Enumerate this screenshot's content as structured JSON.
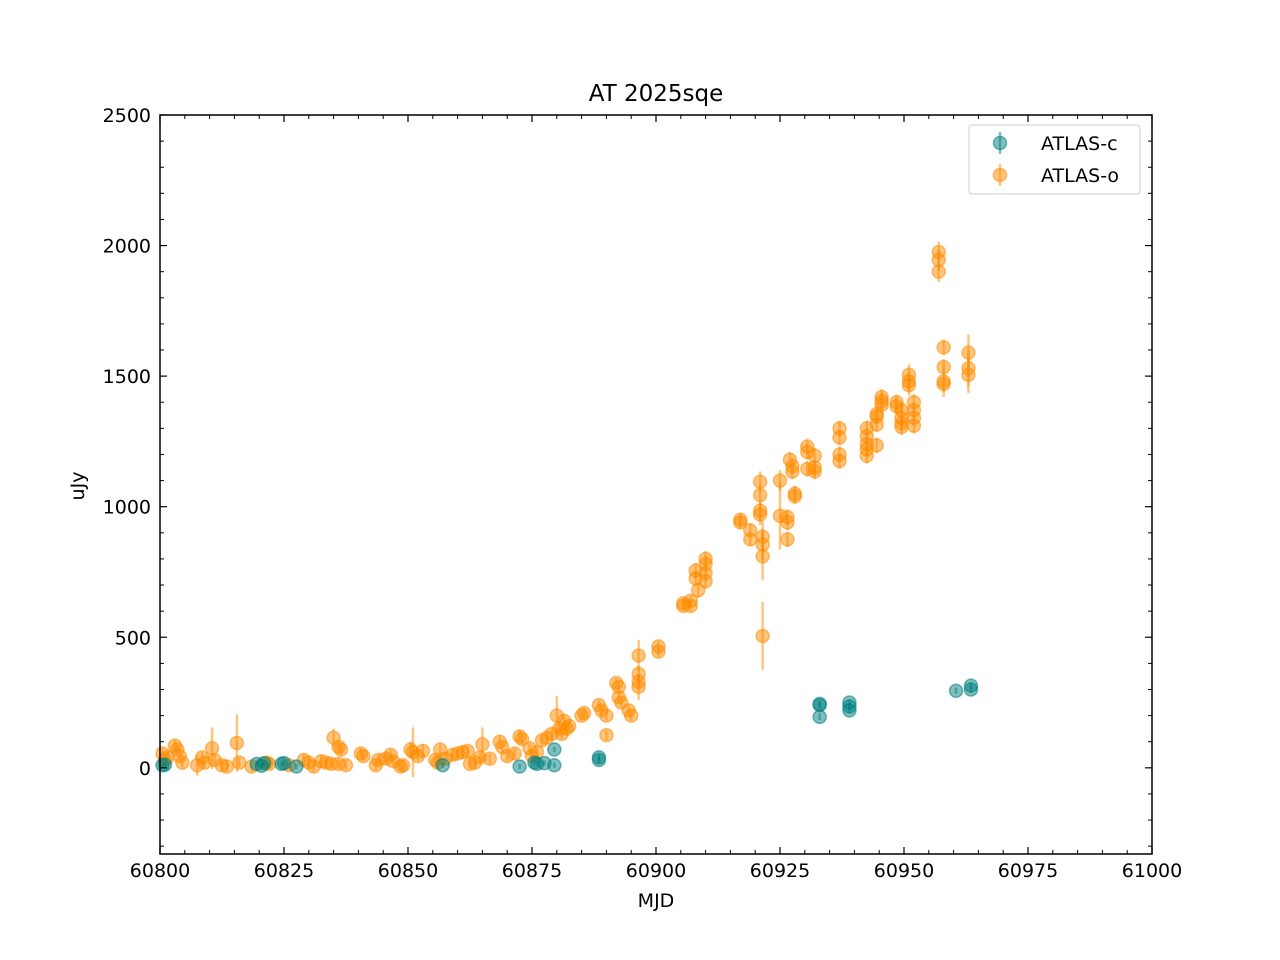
{
  "chart_data": {
    "type": "scatter",
    "title": "AT 2025sqe",
    "xlabel": "MJD",
    "ylabel": "uJy",
    "xlim": [
      60800,
      61000
    ],
    "ylim": [
      -330,
      2500
    ],
    "xticks": [
      "60800",
      "60825",
      "60850",
      "60875",
      "60900",
      "60925",
      "60950",
      "60975",
      "61000"
    ],
    "yticks": [
      "0",
      "500",
      "1000",
      "1500",
      "2000",
      "2500"
    ],
    "grid": false,
    "legend_position": "top-right",
    "series": [
      {
        "name": "ATLAS-c",
        "color": "#008080",
        "marker": "circle",
        "points": [
          [
            60800.5,
            10,
            10
          ],
          [
            60801.0,
            12,
            10
          ],
          [
            60819.5,
            15,
            10
          ],
          [
            60820.5,
            8,
            10
          ],
          [
            60821.0,
            18,
            10
          ],
          [
            60824.5,
            15,
            10
          ],
          [
            60825.0,
            18,
            10
          ],
          [
            60827.5,
            5,
            10
          ],
          [
            60857.0,
            10,
            10
          ],
          [
            60872.5,
            5,
            10
          ],
          [
            60875.5,
            20,
            10
          ],
          [
            60876.0,
            15,
            10
          ],
          [
            60877.5,
            18,
            10
          ],
          [
            60879.5,
            10,
            10
          ],
          [
            60879.5,
            70,
            10
          ],
          [
            60888.5,
            40,
            12
          ],
          [
            60888.5,
            30,
            12
          ],
          [
            60933.0,
            240,
            12
          ],
          [
            60933.0,
            245,
            12
          ],
          [
            60933.0,
            195,
            12
          ],
          [
            60939.0,
            250,
            12
          ],
          [
            60939.0,
            235,
            12
          ],
          [
            60939.0,
            220,
            12
          ],
          [
            60960.5,
            295,
            12
          ],
          [
            60963.5,
            300,
            12
          ],
          [
            60963.5,
            315,
            12
          ]
        ]
      },
      {
        "name": "ATLAS-o",
        "color": "#ff8c00",
        "marker": "circle",
        "points": [
          [
            60800.5,
            55,
            20
          ],
          [
            60801.0,
            30,
            20
          ],
          [
            60801.5,
            40,
            20
          ],
          [
            60803.0,
            85,
            25
          ],
          [
            60803.5,
            70,
            20
          ],
          [
            60804.0,
            45,
            20
          ],
          [
            60804.5,
            20,
            20
          ],
          [
            60807.5,
            10,
            40
          ],
          [
            60808.5,
            40,
            20
          ],
          [
            60809.0,
            20,
            20
          ],
          [
            60810.5,
            75,
            80
          ],
          [
            60811.0,
            30,
            20
          ],
          [
            60812.5,
            10,
            20
          ],
          [
            60813.5,
            5,
            20
          ],
          [
            60815.5,
            95,
            110
          ],
          [
            60816.0,
            20,
            20
          ],
          [
            60818.5,
            5,
            20
          ],
          [
            60821.5,
            20,
            20
          ],
          [
            60822.0,
            15,
            20
          ],
          [
            60826.0,
            10,
            20
          ],
          [
            60829.0,
            30,
            20
          ],
          [
            60830.0,
            20,
            20
          ],
          [
            60831.0,
            5,
            20
          ],
          [
            60832.5,
            25,
            25
          ],
          [
            60833.5,
            20,
            20
          ],
          [
            60834.5,
            15,
            20
          ],
          [
            60835.0,
            115,
            35
          ],
          [
            60836.0,
            80,
            25
          ],
          [
            60836.5,
            70,
            20
          ],
          [
            60836.0,
            15,
            20
          ],
          [
            60837.5,
            10,
            20
          ],
          [
            60840.5,
            55,
            20
          ],
          [
            60841.0,
            45,
            20
          ],
          [
            60843.5,
            10,
            20
          ],
          [
            60844.0,
            30,
            20
          ],
          [
            60845.5,
            35,
            20
          ],
          [
            60846.5,
            50,
            20
          ],
          [
            60847.0,
            25,
            20
          ],
          [
            60848.5,
            5,
            20
          ],
          [
            60849.0,
            10,
            20
          ],
          [
            60850.5,
            70,
            30
          ],
          [
            60851.0,
            60,
            95
          ],
          [
            60852.0,
            45,
            20
          ],
          [
            60853.0,
            65,
            25
          ],
          [
            60855.5,
            30,
            20
          ],
          [
            60856.0,
            20,
            20
          ],
          [
            60856.5,
            70,
            20
          ],
          [
            60857.5,
            35,
            20
          ],
          [
            60859.0,
            50,
            20
          ],
          [
            60860.0,
            55,
            20
          ],
          [
            60861.0,
            60,
            25
          ],
          [
            60862.0,
            65,
            20
          ],
          [
            60862.5,
            15,
            20
          ],
          [
            60863.5,
            20,
            20
          ],
          [
            60864.5,
            40,
            20
          ],
          [
            60865.0,
            90,
            65
          ],
          [
            60866.5,
            35,
            20
          ],
          [
            60868.5,
            100,
            25
          ],
          [
            60869.0,
            80,
            20
          ],
          [
            60870.0,
            45,
            20
          ],
          [
            60871.5,
            55,
            20
          ],
          [
            60872.5,
            120,
            25
          ],
          [
            60873.0,
            110,
            20
          ],
          [
            60874.5,
            75,
            20
          ],
          [
            60875.0,
            45,
            20
          ],
          [
            60876.0,
            60,
            20
          ],
          [
            60877.0,
            105,
            20
          ],
          [
            60878.0,
            115,
            20
          ],
          [
            60879.0,
            130,
            20
          ],
          [
            60880.0,
            200,
            75
          ],
          [
            60880.5,
            150,
            20
          ],
          [
            60881.0,
            130,
            20
          ],
          [
            60881.5,
            180,
            20
          ],
          [
            60882.0,
            150,
            20
          ],
          [
            60882.5,
            160,
            20
          ],
          [
            60885.0,
            200,
            20
          ],
          [
            60885.5,
            210,
            20
          ],
          [
            60888.5,
            240,
            20
          ],
          [
            60889.0,
            220,
            20
          ],
          [
            60890.0,
            200,
            20
          ],
          [
            60890.0,
            125,
            20
          ],
          [
            60892.0,
            325,
            20
          ],
          [
            60892.5,
            310,
            20
          ],
          [
            60892.5,
            270,
            20
          ],
          [
            60893.0,
            250,
            20
          ],
          [
            60894.5,
            220,
            20
          ],
          [
            60895.0,
            200,
            20
          ],
          [
            60896.5,
            430,
            60
          ],
          [
            60896.5,
            360,
            30
          ],
          [
            60896.5,
            330,
            30
          ],
          [
            60896.5,
            310,
            50
          ],
          [
            60900.5,
            465,
            20
          ],
          [
            60900.5,
            445,
            20
          ],
          [
            60905.5,
            630,
            20
          ],
          [
            60905.5,
            620,
            20
          ],
          [
            60907.0,
            640,
            20
          ],
          [
            60907.0,
            620,
            20
          ],
          [
            60908.0,
            755,
            30
          ],
          [
            60908.0,
            725,
            30
          ],
          [
            60908.5,
            680,
            30
          ],
          [
            60910.0,
            800,
            30
          ],
          [
            60910.0,
            780,
            30
          ],
          [
            60910.0,
            745,
            30
          ],
          [
            60910.0,
            715,
            30
          ],
          [
            60917.0,
            950,
            25
          ],
          [
            60917.0,
            940,
            25
          ],
          [
            60919.0,
            910,
            25
          ],
          [
            60919.0,
            875,
            25
          ],
          [
            60921.0,
            1095,
            40
          ],
          [
            60921.0,
            1045,
            40
          ],
          [
            60921.0,
            985,
            40
          ],
          [
            60921.0,
            970,
            40
          ],
          [
            60921.5,
            885,
            60
          ],
          [
            60921.5,
            855,
            60
          ],
          [
            60921.5,
            810,
            90
          ],
          [
            60921.5,
            505,
            130
          ],
          [
            60925.0,
            1100,
            40
          ],
          [
            60925.0,
            965,
            130
          ],
          [
            60926.5,
            960,
            30
          ],
          [
            60926.5,
            940,
            30
          ],
          [
            60926.5,
            875,
            30
          ],
          [
            60927.0,
            1180,
            30
          ],
          [
            60927.5,
            1155,
            30
          ],
          [
            60927.5,
            1135,
            30
          ],
          [
            60928.0,
            1050,
            30
          ],
          [
            60928.0,
            1040,
            30
          ],
          [
            60930.5,
            1230,
            30
          ],
          [
            60930.5,
            1210,
            30
          ],
          [
            60930.5,
            1145,
            30
          ],
          [
            60932.0,
            1195,
            30
          ],
          [
            60932.0,
            1150,
            30
          ],
          [
            60932.0,
            1135,
            30
          ],
          [
            60937.0,
            1300,
            30
          ],
          [
            60937.0,
            1265,
            30
          ],
          [
            60937.0,
            1200,
            30
          ],
          [
            60937.0,
            1175,
            30
          ],
          [
            60942.5,
            1300,
            30
          ],
          [
            60942.5,
            1270,
            30
          ],
          [
            60942.5,
            1240,
            30
          ],
          [
            60942.5,
            1220,
            30
          ],
          [
            60942.5,
            1195,
            30
          ],
          [
            60944.5,
            1355,
            30
          ],
          [
            60944.5,
            1345,
            30
          ],
          [
            60944.5,
            1315,
            30
          ],
          [
            60944.5,
            1235,
            30
          ],
          [
            60945.5,
            1420,
            30
          ],
          [
            60945.5,
            1405,
            30
          ],
          [
            60945.5,
            1390,
            30
          ],
          [
            60948.5,
            1400,
            30
          ],
          [
            60948.5,
            1385,
            30
          ],
          [
            60949.5,
            1370,
            30
          ],
          [
            60949.5,
            1340,
            30
          ],
          [
            60949.5,
            1320,
            30
          ],
          [
            60949.5,
            1305,
            30
          ],
          [
            60951.0,
            1505,
            40
          ],
          [
            60951.0,
            1480,
            40
          ],
          [
            60951.0,
            1465,
            40
          ],
          [
            60952.0,
            1400,
            30
          ],
          [
            60952.0,
            1370,
            30
          ],
          [
            60952.0,
            1340,
            30
          ],
          [
            60952.0,
            1310,
            30
          ],
          [
            60957.0,
            1975,
            40
          ],
          [
            60957.0,
            1945,
            40
          ],
          [
            60957.0,
            1900,
            40
          ],
          [
            60958.0,
            1610,
            30
          ],
          [
            60958.0,
            1535,
            30
          ],
          [
            60958.0,
            1480,
            60
          ],
          [
            60958.0,
            1470,
            30
          ],
          [
            60963.0,
            1590,
            70
          ],
          [
            60963.0,
            1530,
            70
          ],
          [
            60963.0,
            1505,
            70
          ]
        ]
      }
    ]
  }
}
